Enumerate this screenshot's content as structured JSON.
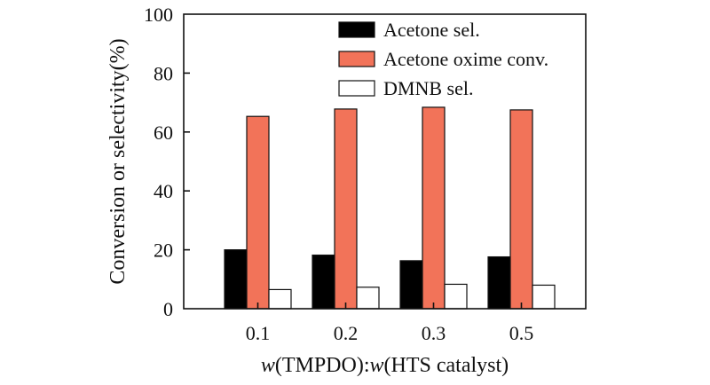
{
  "chart_data": {
    "type": "bar",
    "categories": [
      "0.1",
      "0.2",
      "0.3",
      "0.5"
    ],
    "series": [
      {
        "name": "Acetone sel.",
        "values": [
          20.0,
          18.2,
          16.3,
          17.6
        ],
        "fill": "#000000"
      },
      {
        "name": "Acetone oxime conv.",
        "values": [
          65.3,
          67.8,
          68.4,
          67.5
        ],
        "fill": "#f27359"
      },
      {
        "name": "DMNB sel.",
        "values": [
          6.5,
          7.3,
          8.3,
          8.0
        ],
        "fill": "#ffffff"
      }
    ],
    "title": "",
    "xlabel_italic_1": "w",
    "xlabel_part_1": "(TMPDO):",
    "xlabel_italic_2": "w",
    "xlabel_part_2": "(HTS catalyst)",
    "ylabel": "Conversion or selectivity(%)",
    "ylim": [
      0,
      100
    ],
    "yticks": [
      0,
      20,
      40,
      60,
      80,
      100
    ],
    "legend_position": "top-right",
    "grid": false
  }
}
